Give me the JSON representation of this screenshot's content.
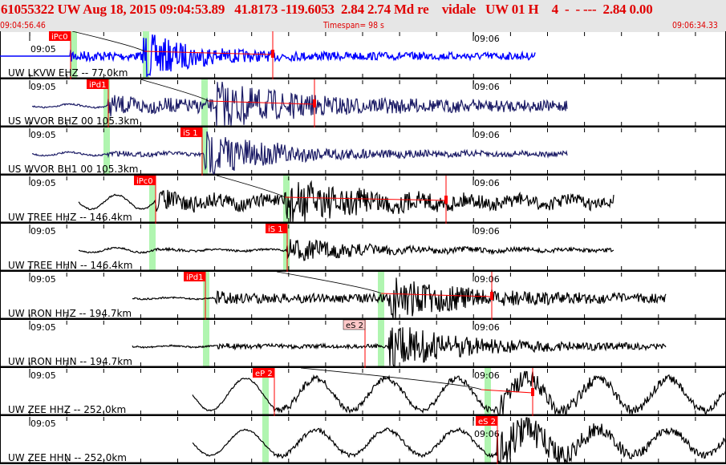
{
  "header": {
    "title": "61055322 UW Aug 18, 2015 09:04:53.89   41.8173 -119.6053  2.84 2.74 Md re    vidale   UW 01 H    4  -  - ---  2.84 0.00",
    "start_time": "09:04:56.46",
    "timespan": "Timespan=  98 s",
    "end_time": "09:06:34.33"
  },
  "tick_labels": [
    "09:05",
    "09:06"
  ],
  "colors": {
    "header_text": "#e00000",
    "pick": "#ff0000",
    "pick_weak": "#ffc8c8",
    "window": "#b0f5b0"
  },
  "traces": [
    {
      "label": "UW LKVW EHZ -- 77.0km",
      "color": "#0000ff",
      "pick": "iPc0",
      "pick_style": "strong"
    },
    {
      "label": "US WVOR BHZ 00 105.3km",
      "color": "#1c1c66",
      "pick": "iPd1",
      "pick_style": "strong"
    },
    {
      "label": "US WVOR BH1 00 105.3km",
      "color": "#1c1c66",
      "pick": "iS 1",
      "pick_style": "strong"
    },
    {
      "label": "UW TREE HHZ -- 146.4km",
      "color": "#000000",
      "pick": "iPc0",
      "pick_style": "strong"
    },
    {
      "label": "UW TREE HHN -- 146.4km",
      "color": "#000000",
      "pick": "iS 1",
      "pick_style": "strong"
    },
    {
      "label": "UW IRON HHZ -- 194.7km",
      "color": "#000000",
      "pick": "iPd1",
      "pick_style": "strong"
    },
    {
      "label": "UW IRON HHN -- 194.7km",
      "color": "#000000",
      "pick": "eS 2",
      "pick_style": "weak"
    },
    {
      "label": "UW ZEE HHZ -- 252.0km",
      "color": "#000000",
      "pick": "eP 2",
      "pick_style": "strong"
    },
    {
      "label": "UW ZEE HHN -- 252.0km",
      "color": "#000000",
      "pick": "eS 2",
      "pick_style": "strong"
    }
  ]
}
